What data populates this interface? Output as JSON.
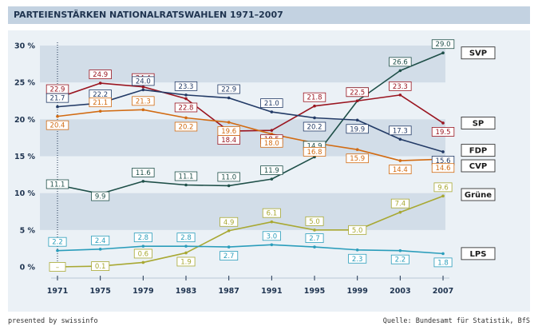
{
  "header": {
    "title": "PARTEIENSTÄRKEN NATIONALRATSWAHLEN 1971–2007"
  },
  "footer": {
    "left": "presented by swissinfo",
    "right": "Quelle: Bundesamt für Statistik, BfS"
  },
  "colors": {
    "SVP": "#1e4f48",
    "SP": "#9a1520",
    "FDP": "#223a66",
    "CVP": "#d26b12",
    "Grüne": "#a8a832",
    "LPS": "#2a9dbb",
    "band": "#d2dde8",
    "panel": "#ebf1f6"
  },
  "chart_data": {
    "type": "line",
    "title": "PARTEIENSTÄRKEN NATIONALRATSWAHLEN 1971–2007",
    "xlabel": "",
    "ylabel": "",
    "x": [
      1971,
      1975,
      1979,
      1983,
      1987,
      1991,
      1995,
      1999,
      2003,
      2007
    ],
    "ylim": [
      0,
      30
    ],
    "yticks": [
      0,
      5,
      10,
      15,
      20,
      25,
      30
    ],
    "ytick_labels": [
      "0 %",
      "5 %",
      "10 %",
      "15 %",
      "20 %",
      "25 %",
      "30 %"
    ],
    "grid": false,
    "series": [
      {
        "name": "SVP",
        "values": [
          11.1,
          9.9,
          11.6,
          11.1,
          11.0,
          11.9,
          14.9,
          22.5,
          26.6,
          29.0
        ],
        "labels": [
          "11.1",
          "9.9",
          "11.6",
          "11.1",
          "11.0",
          "11.9",
          "14.9",
          "22.5",
          "26.6",
          "29.0"
        ]
      },
      {
        "name": "SP",
        "values": [
          22.9,
          24.9,
          24.4,
          22.8,
          18.4,
          18.5,
          21.8,
          22.5,
          23.3,
          19.5
        ],
        "labels": [
          "22.9",
          "24.9",
          "24.4",
          "22.8",
          "18.4",
          "18.5",
          "21.8",
          "22.5",
          "23.3",
          "19.5"
        ]
      },
      {
        "name": "FDP",
        "values": [
          21.7,
          22.2,
          24.0,
          23.3,
          22.9,
          21.0,
          20.2,
          19.9,
          17.3,
          15.6
        ],
        "labels": [
          "21.7",
          "22.2",
          "24.0",
          "23.3",
          "22.9",
          "21.0",
          "20.2",
          "19.9",
          "17.3",
          "15.6"
        ]
      },
      {
        "name": "CVP",
        "values": [
          20.4,
          21.1,
          21.3,
          20.2,
          19.6,
          18.0,
          16.8,
          15.9,
          14.4,
          14.6
        ],
        "labels": [
          "20.4",
          "21.1",
          "21.3",
          "20.2",
          "19.6",
          "18.0",
          "16.8",
          "15.9",
          "14.4",
          "14.6"
        ]
      },
      {
        "name": "Grüne",
        "values": [
          0,
          0.1,
          0.6,
          1.9,
          4.9,
          6.1,
          5.0,
          5.0,
          7.4,
          9.6
        ],
        "labels": [
          "–",
          "0.1",
          "0.6",
          "1.9",
          "4.9",
          "6.1",
          "5.0",
          "5.0",
          "7.4",
          "9.6"
        ]
      },
      {
        "name": "LPS",
        "values": [
          2.2,
          2.4,
          2.8,
          2.8,
          2.7,
          3.0,
          2.7,
          2.3,
          2.2,
          1.8
        ],
        "labels": [
          "2.2",
          "2.4",
          "2.8",
          "2.8",
          "2.7",
          "3.0",
          "2.7",
          "2.3",
          "2.2",
          "1.8"
        ]
      }
    ]
  }
}
